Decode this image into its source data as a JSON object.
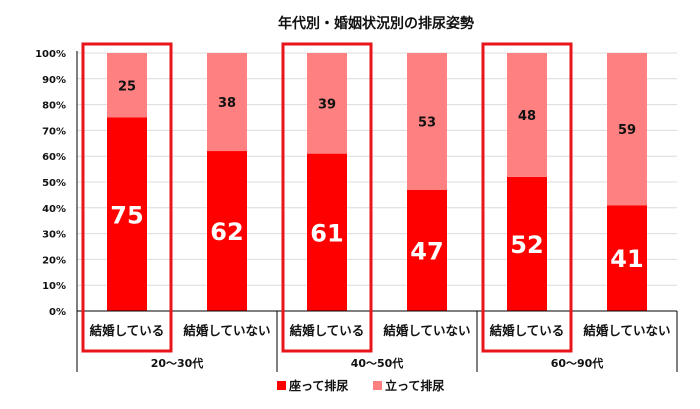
{
  "chart_data": {
    "type": "bar",
    "stacked": true,
    "percent": true,
    "title": "年代別・婚姻状況別の排尿姿勢",
    "groups": [
      "20〜30代",
      "40〜50代",
      "60〜90代"
    ],
    "categories": [
      "結婚している",
      "結婚していない",
      "結婚している",
      "結婚していない",
      "結婚している",
      "結婚していない"
    ],
    "series": [
      {
        "name": "座って排尿",
        "color": "#ff0000",
        "values": [
          75,
          62,
          61,
          47,
          52,
          41
        ]
      },
      {
        "name": "立って排尿",
        "color": "#ff8080",
        "values": [
          25,
          38,
          39,
          53,
          48,
          59
        ]
      }
    ],
    "highlighted_categories": [
      0,
      2,
      4
    ],
    "highlight_color": "#e8151b",
    "ylim": [
      0,
      100
    ],
    "yticks": [
      "0%",
      "10%",
      "20%",
      "30%",
      "40%",
      "50%",
      "60%",
      "70%",
      "80%",
      "90%",
      "100%"
    ],
    "grid": true,
    "legend": "bottom"
  }
}
